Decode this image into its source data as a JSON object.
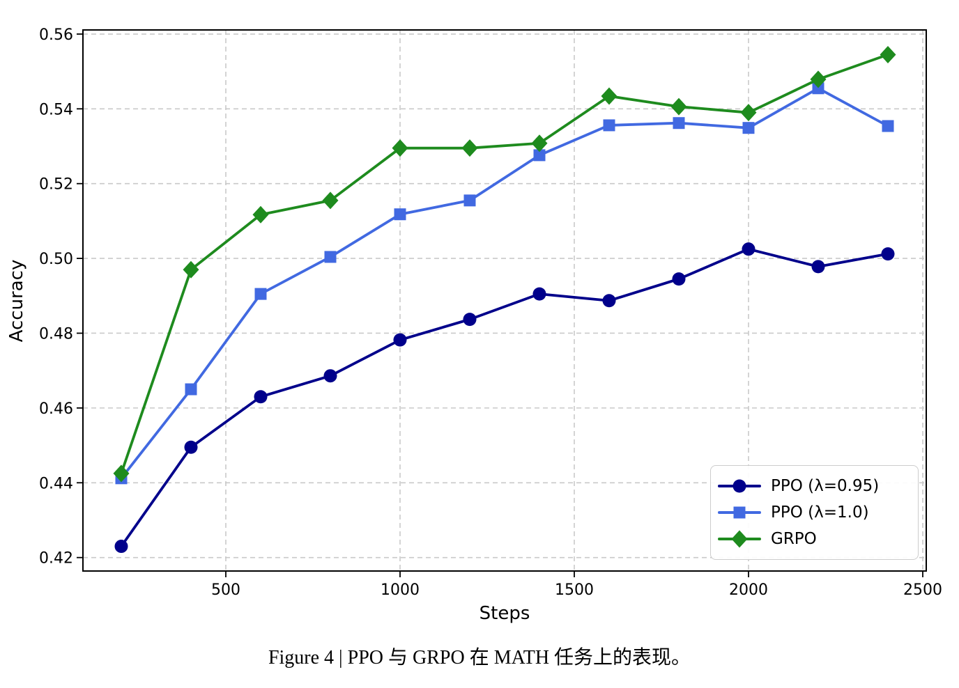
{
  "figure": {
    "caption": "Figure 4 | PPO 与 GRPO 在 MATH 任务上的表现。"
  },
  "chart_data": {
    "type": "line",
    "title": "",
    "xlabel": "Steps",
    "ylabel": "Accuracy",
    "xlim": [
      90,
      2510
    ],
    "ylim": [
      0.4164,
      0.5611
    ],
    "x_ticks": [
      500,
      1000,
      1500,
      2000,
      2500
    ],
    "y_ticks": [
      0.42,
      0.44,
      0.46,
      0.48,
      0.5,
      0.52,
      0.54,
      0.56
    ],
    "grid": true,
    "grid_style": "dashed",
    "legend_position": "lower right",
    "x": [
      200,
      400,
      600,
      800,
      1000,
      1200,
      1400,
      1600,
      1800,
      2000,
      2200,
      2400
    ],
    "series": [
      {
        "name": "PPO (λ=0.95)",
        "color": "#00008B",
        "marker": "circle",
        "values": [
          0.423,
          0.4495,
          0.463,
          0.4686,
          0.4782,
          0.4837,
          0.4905,
          0.4887,
          0.4945,
          0.5025,
          0.4978,
          0.5012
        ]
      },
      {
        "name": "PPO (λ=1.0)",
        "color": "#4169E1",
        "marker": "square",
        "values": [
          0.4412,
          0.465,
          0.4905,
          0.5004,
          0.5118,
          0.5155,
          0.5276,
          0.5356,
          0.5362,
          0.5349,
          0.5455,
          0.5354
        ]
      },
      {
        "name": "GRPO",
        "color": "#1E8B1E",
        "marker": "diamond",
        "values": [
          0.4425,
          0.497,
          0.5117,
          0.5155,
          0.5295,
          0.5295,
          0.5308,
          0.5434,
          0.5406,
          0.539,
          0.5479,
          0.5545
        ]
      }
    ]
  }
}
